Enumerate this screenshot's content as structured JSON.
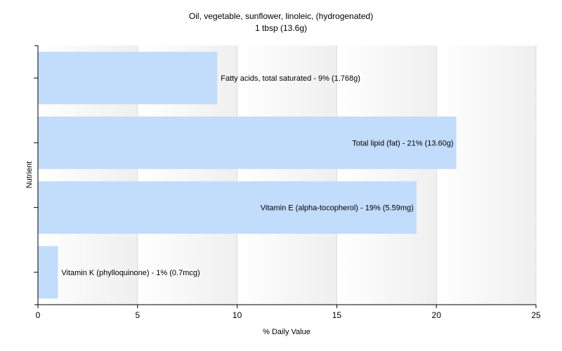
{
  "chart_data": {
    "type": "bar",
    "orientation": "horizontal",
    "title": "Oil, vegetable, sunflower, linoleic, (hydrogenated)",
    "subtitle": "1 tbsp (13.6g)",
    "xlabel": "% Daily Value",
    "ylabel": "Nutrient",
    "xlim": [
      0,
      25
    ],
    "xticks": [
      0,
      5,
      10,
      15,
      20,
      25
    ],
    "grid": true,
    "bar_color": "#c2dcfc",
    "categories": [
      "Fatty acids, total saturated",
      "Total lipid (fat)",
      "Vitamin E (alpha-tocopherol)",
      "Vitamin K (phylloquinone)"
    ],
    "values": [
      9,
      21,
      19,
      1
    ],
    "labels": [
      "Fatty acids, total saturated - 9% (1.768g)",
      "Total lipid (fat) - 21% (13.60g)",
      "Vitamin E (alpha-tocopherol) - 19% (5.59mg)",
      "Vitamin K (phylloquinone) - 1% (0.7mcg)"
    ]
  }
}
